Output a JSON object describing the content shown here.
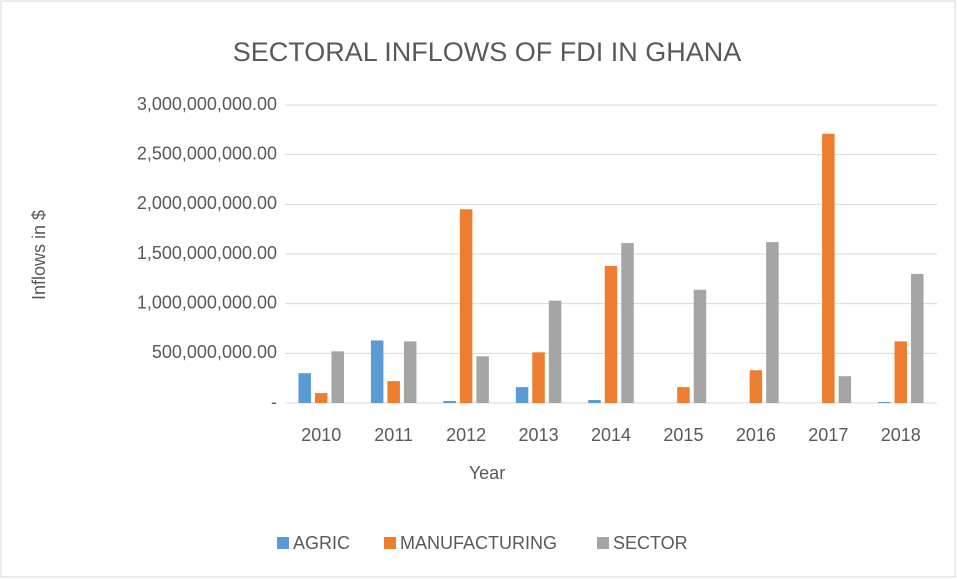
{
  "chart_data": {
    "type": "bar",
    "title": "SECTORAL INFLOWS OF FDI IN GHANA",
    "x_label": "Year",
    "y_label": "Inflows in $",
    "categories": [
      "2010",
      "2011",
      "2012",
      "2013",
      "2014",
      "2015",
      "2016",
      "2017",
      "2018"
    ],
    "series": [
      {
        "name": "AGRIC",
        "color": "#5b9bd5",
        "values": [
          300000000,
          630000000,
          20000000,
          160000000,
          30000000,
          0,
          0,
          0,
          10000000
        ]
      },
      {
        "name": "MANUFACTURING",
        "color": "#ed7d31",
        "values": [
          100000000,
          220000000,
          1950000000,
          510000000,
          1380000000,
          160000000,
          330000000,
          2710000000,
          620000000
        ]
      },
      {
        "name": "SECTOR",
        "color": "#a5a5a5",
        "values": [
          520000000,
          620000000,
          470000000,
          1030000000,
          1610000000,
          1140000000,
          1620000000,
          270000000,
          1300000000
        ]
      }
    ],
    "ylim": [
      0,
      3000000000
    ],
    "yticks": [
      {
        "value": 0,
        "label": "-"
      },
      {
        "value": 500000000,
        "label": "500,000,000.00"
      },
      {
        "value": 1000000000,
        "label": "1,000,000,000.00"
      },
      {
        "value": 1500000000,
        "label": "1,500,000,000.00"
      },
      {
        "value": 2000000000,
        "label": "2,000,000,000.00"
      },
      {
        "value": 2500000000,
        "label": "2,500,000,000.00"
      },
      {
        "value": 3000000000,
        "label": "3,000,000,000.00"
      }
    ],
    "grid": true,
    "legend": "bottom"
  }
}
